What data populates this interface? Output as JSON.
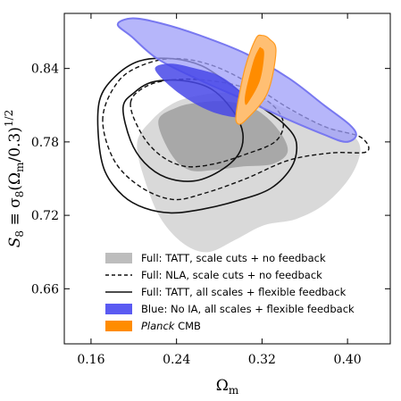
{
  "chart_data": {
    "type": "contour",
    "xlabel": "Ωm",
    "ylabel": "S8 ≡ σ8(Ωm/0.3)^1/2",
    "xlim": [
      0.135,
      0.44
    ],
    "ylim": [
      0.615,
      0.885
    ],
    "xticks": [
      "0.16",
      "0.24",
      "0.32",
      "0.40"
    ],
    "yticks": [
      "0.66",
      "0.72",
      "0.78",
      "0.84"
    ],
    "xtick_values": [
      0.16,
      0.24,
      0.32,
      0.4
    ],
    "ytick_values": [
      0.66,
      0.72,
      0.78,
      0.84
    ],
    "grid": false,
    "legend_position": "bottom-left",
    "series": [
      {
        "name": "Full: TATT, scale cuts + no feedback",
        "style": "filled-gray",
        "color": "#bdbdbd",
        "outer": [
          [
            0.203,
            0.778
          ],
          [
            0.213,
            0.742
          ],
          [
            0.227,
            0.715
          ],
          [
            0.248,
            0.696
          ],
          [
            0.27,
            0.69
          ],
          [
            0.295,
            0.7
          ],
          [
            0.322,
            0.712
          ],
          [
            0.352,
            0.717
          ],
          [
            0.38,
            0.73
          ],
          [
            0.403,
            0.752
          ],
          [
            0.412,
            0.774
          ],
          [
            0.402,
            0.787
          ],
          [
            0.378,
            0.793
          ],
          [
            0.35,
            0.804
          ],
          [
            0.318,
            0.815
          ],
          [
            0.288,
            0.82
          ],
          [
            0.262,
            0.818
          ],
          [
            0.238,
            0.812
          ],
          [
            0.217,
            0.798
          ]
        ],
        "inner": [
          [
            0.223,
            0.797
          ],
          [
            0.235,
            0.77
          ],
          [
            0.252,
            0.757
          ],
          [
            0.275,
            0.757
          ],
          [
            0.303,
            0.76
          ],
          [
            0.33,
            0.762
          ],
          [
            0.344,
            0.772
          ],
          [
            0.336,
            0.789
          ],
          [
            0.315,
            0.806
          ],
          [
            0.288,
            0.813
          ],
          [
            0.26,
            0.812
          ],
          [
            0.24,
            0.808
          ]
        ]
      },
      {
        "name": "Full: NLA, scale cuts + no feedback",
        "style": "dashed-black",
        "color": "#111111",
        "outer": [
          [
            0.171,
            0.8
          ],
          [
            0.181,
            0.766
          ],
          [
            0.205,
            0.744
          ],
          [
            0.236,
            0.733
          ],
          [
            0.266,
            0.738
          ],
          [
            0.305,
            0.75
          ],
          [
            0.345,
            0.765
          ],
          [
            0.385,
            0.771
          ],
          [
            0.418,
            0.772
          ],
          [
            0.412,
            0.784
          ],
          [
            0.38,
            0.792
          ],
          [
            0.344,
            0.808
          ],
          [
            0.31,
            0.827
          ],
          [
            0.275,
            0.842
          ],
          [
            0.242,
            0.848
          ],
          [
            0.212,
            0.844
          ],
          [
            0.186,
            0.83
          ]
        ],
        "inner": [
          [
            0.197,
            0.812
          ],
          [
            0.207,
            0.787
          ],
          [
            0.225,
            0.769
          ],
          [
            0.248,
            0.76
          ],
          [
            0.275,
            0.762
          ],
          [
            0.305,
            0.77
          ],
          [
            0.332,
            0.78
          ],
          [
            0.34,
            0.795
          ],
          [
            0.33,
            0.81
          ],
          [
            0.304,
            0.824
          ],
          [
            0.272,
            0.83
          ],
          [
            0.24,
            0.831
          ],
          [
            0.213,
            0.826
          ]
        ]
      },
      {
        "name": "Full: TATT, all scales + flexible feedback",
        "style": "solid-black",
        "color": "#111111",
        "outer": [
          [
            0.168,
            0.814
          ],
          [
            0.167,
            0.783
          ],
          [
            0.173,
            0.756
          ],
          [
            0.19,
            0.736
          ],
          [
            0.21,
            0.726
          ],
          [
            0.235,
            0.722
          ],
          [
            0.264,
            0.725
          ],
          [
            0.297,
            0.732
          ],
          [
            0.328,
            0.742
          ],
          [
            0.348,
            0.76
          ],
          [
            0.352,
            0.78
          ],
          [
            0.34,
            0.795
          ],
          [
            0.317,
            0.81
          ],
          [
            0.29,
            0.827
          ],
          [
            0.264,
            0.842
          ],
          [
            0.236,
            0.848
          ],
          [
            0.205,
            0.846
          ],
          [
            0.182,
            0.833
          ]
        ],
        "inner": [
          [
            0.19,
            0.808
          ],
          [
            0.197,
            0.781
          ],
          [
            0.21,
            0.763
          ],
          [
            0.23,
            0.751
          ],
          [
            0.256,
            0.748
          ],
          [
            0.28,
            0.756
          ],
          [
            0.298,
            0.77
          ],
          [
            0.302,
            0.787
          ],
          [
            0.293,
            0.805
          ],
          [
            0.273,
            0.823
          ],
          [
            0.247,
            0.83
          ],
          [
            0.218,
            0.829
          ],
          [
            0.2,
            0.82
          ]
        ]
      },
      {
        "name": "Blue: No IA, all scales + flexible feedback",
        "style": "filled-blue",
        "color": "#5a5af2",
        "outer": [
          [
            0.185,
            0.876
          ],
          [
            0.198,
            0.866
          ],
          [
            0.222,
            0.848
          ],
          [
            0.258,
            0.832
          ],
          [
            0.302,
            0.815
          ],
          [
            0.345,
            0.798
          ],
          [
            0.378,
            0.786
          ],
          [
            0.398,
            0.78
          ],
          [
            0.408,
            0.785
          ],
          [
            0.402,
            0.794
          ],
          [
            0.378,
            0.81
          ],
          [
            0.345,
            0.832
          ],
          [
            0.305,
            0.852
          ],
          [
            0.262,
            0.867
          ],
          [
            0.225,
            0.877
          ],
          [
            0.199,
            0.881
          ]
        ],
        "inner": [
          [
            0.22,
            0.839
          ],
          [
            0.242,
            0.82
          ],
          [
            0.272,
            0.805
          ],
          [
            0.3,
            0.8
          ],
          [
            0.311,
            0.806
          ],
          [
            0.3,
            0.821
          ],
          [
            0.28,
            0.834
          ],
          [
            0.258,
            0.84
          ],
          [
            0.234,
            0.844
          ]
        ]
      },
      {
        "name": "Planck CMB",
        "style": "filled-orange",
        "color": "#ff8c00",
        "outer": [
          [
            0.32,
            0.867
          ],
          [
            0.327,
            0.864
          ],
          [
            0.333,
            0.854
          ],
          [
            0.325,
            0.82
          ],
          [
            0.305,
            0.798
          ],
          [
            0.297,
            0.795
          ],
          [
            0.296,
            0.805
          ],
          [
            0.304,
            0.84
          ],
          [
            0.314,
            0.864
          ]
        ],
        "inner": [
          [
            0.319,
            0.857
          ],
          [
            0.322,
            0.852
          ],
          [
            0.318,
            0.83
          ],
          [
            0.307,
            0.812
          ],
          [
            0.304,
            0.812
          ],
          [
            0.305,
            0.822
          ],
          [
            0.312,
            0.846
          ],
          [
            0.317,
            0.856
          ]
        ]
      }
    ]
  },
  "legend": [
    {
      "label": "Full: TATT, scale cuts + no feedback",
      "swatch": "gray-fill"
    },
    {
      "label": "Full: NLA, scale cuts + no feedback",
      "swatch": "dashed"
    },
    {
      "label": "Full: TATT, all scales + flexible feedback",
      "swatch": "solid"
    },
    {
      "label": "Blue: No IA, all scales + flexible feedback",
      "swatch": "blue-fill"
    },
    {
      "label_italic": "Planck",
      "label_rest": " CMB",
      "swatch": "orange-fill"
    }
  ]
}
